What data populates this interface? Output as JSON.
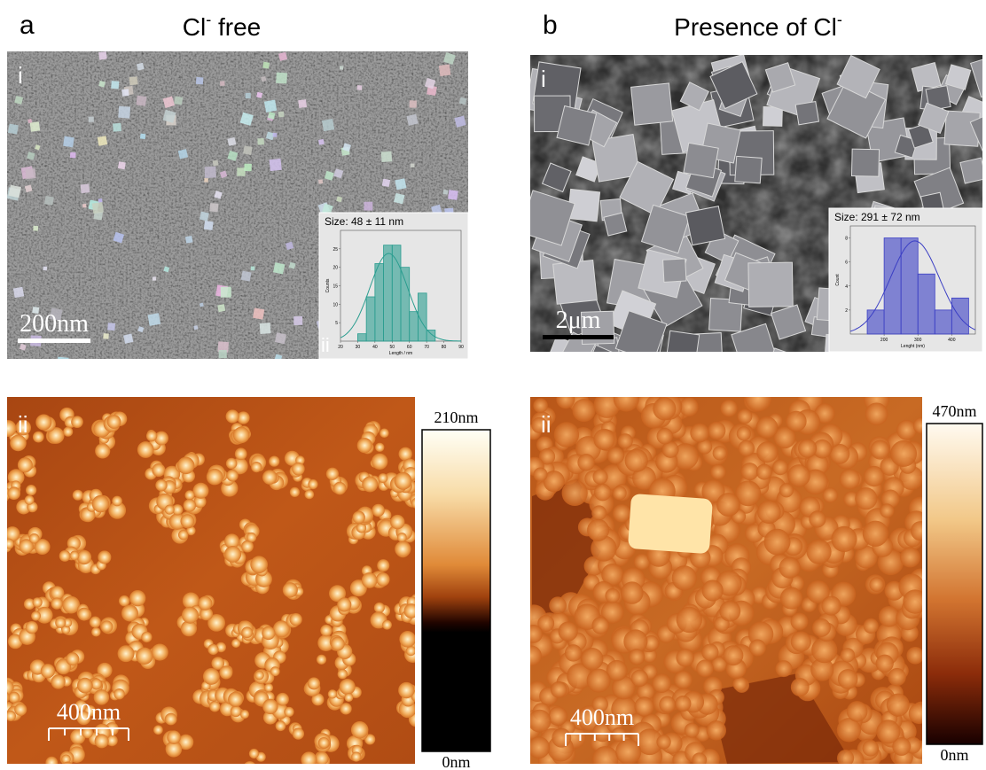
{
  "panels": [
    {
      "label": "a",
      "title": {
        "pre": "Cl",
        "sup": "-",
        "post": " free"
      },
      "sem": {
        "label": "i",
        "scale_bar": "200nm",
        "inset": {
          "type": "histogram",
          "label": "ii",
          "size": {
            "label": "Size: 48 ± 11 nm",
            "mean": 48,
            "sd": 11
          },
          "bins": [
            30,
            35,
            40,
            45,
            50,
            55,
            60,
            65,
            70,
            75
          ],
          "counts": [
            2,
            12,
            21,
            26,
            26,
            20,
            8,
            13,
            3
          ],
          "xlim": [
            20,
            90
          ],
          "xticks": [
            20,
            30,
            40,
            50,
            60,
            70,
            80,
            90
          ],
          "ylim": [
            0,
            30
          ],
          "yticks": [
            5,
            10,
            15,
            20,
            25
          ],
          "xlabel": "Length / nm",
          "ylabel": "Counts",
          "color": "#2a9d8f"
        }
      },
      "afm": {
        "label": "ii",
        "scale_bar": "400nm",
        "colorbar": {
          "max": "210nm",
          "min": "0nm"
        }
      }
    },
    {
      "label": "b",
      "title": {
        "pre": "Presence of Cl",
        "sup": "-"
      },
      "sem": {
        "label": "i",
        "scale_bar": "2μm",
        "inset": {
          "type": "histogram",
          "size": {
            "label": "Size: 291 ± 72 nm",
            "mean": 291,
            "sd": 72
          },
          "bins": [
            150,
            200,
            250,
            300,
            350,
            400,
            450
          ],
          "counts": [
            2,
            8,
            8,
            5,
            2,
            3
          ],
          "xlim": [
            100,
            470
          ],
          "xticks": [
            200,
            300,
            400
          ],
          "ylim": [
            0,
            9
          ],
          "yticks": [
            2,
            4,
            6,
            8
          ],
          "xlabel": "Lenght (nm)",
          "ylabel": "Count",
          "color": "#3b3fc4"
        }
      },
      "afm": {
        "label": "ii",
        "scale_bar": "400nm",
        "colorbar": {
          "max": "470nm",
          "min": "0nm"
        }
      }
    }
  ]
}
